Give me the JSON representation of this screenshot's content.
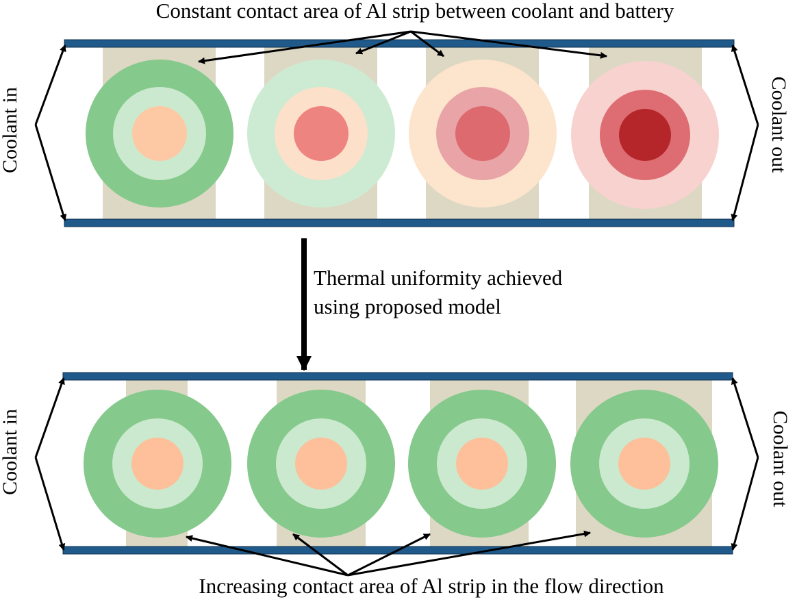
{
  "top_caption": "Constant contact area of Al strip between coolant and battery",
  "middle_caption": {
    "line1": "Thermal uniformity achieved",
    "line2": "using proposed model"
  },
  "bottom_caption": "Increasing contact area of Al strip in the flow direction",
  "inlet_label": "Coolant in",
  "outlet_label": "Coolant out",
  "colors": {
    "channel_wall": "#1f5a8a",
    "channel_wall_edge": "#0f2f4f",
    "al_strip": "#ddd8c4",
    "arrow": "#000000"
  },
  "top_cells": [
    {
      "rings": [
        "#86c98c",
        "#cbe9ce",
        "#fdc9a4"
      ]
    },
    {
      "rings": [
        "#cdebd2",
        "#fde0c9",
        "#ee8480"
      ]
    },
    {
      "rings": [
        "#fde4cd",
        "#e8a4a6",
        "#dd6a6e"
      ]
    },
    {
      "rings": [
        "#f7d2ce",
        "#dd6d72",
        "#b5262b"
      ]
    }
  ],
  "bottom_cells": [
    {
      "rings": [
        "#86c98c",
        "#cbe9ce",
        "#fdc09a"
      ]
    },
    {
      "rings": [
        "#86c98c",
        "#cbe9ce",
        "#fdc09a"
      ]
    },
    {
      "rings": [
        "#86c98c",
        "#cbe9ce",
        "#fdc09a"
      ]
    },
    {
      "rings": [
        "#86c98c",
        "#cbe9ce",
        "#fdc09a"
      ]
    }
  ]
}
